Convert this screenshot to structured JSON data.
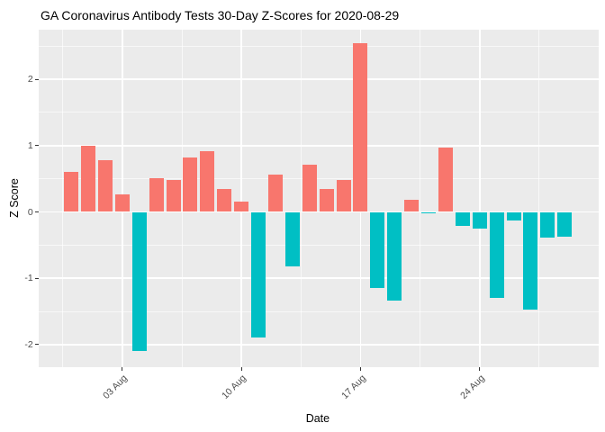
{
  "title": "GA Coronavirus Antibody Tests 30-Day Z-Scores for 2020-08-29",
  "chart_data": {
    "type": "bar",
    "title": "GA Coronavirus Antibody Tests 30-Day Z-Scores for 2020-08-29",
    "xlabel": "Date",
    "ylabel": "Z Score",
    "x": [
      "2020-07-31",
      "2020-08-01",
      "2020-08-02",
      "2020-08-03",
      "2020-08-04",
      "2020-08-05",
      "2020-08-06",
      "2020-08-07",
      "2020-08-08",
      "2020-08-09",
      "2020-08-10",
      "2020-08-11",
      "2020-08-12",
      "2020-08-13",
      "2020-08-14",
      "2020-08-15",
      "2020-08-16",
      "2020-08-17",
      "2020-08-18",
      "2020-08-19",
      "2020-08-20",
      "2020-08-21",
      "2020-08-22",
      "2020-08-23",
      "2020-08-24",
      "2020-08-25",
      "2020-08-26",
      "2020-08-27",
      "2020-08-28",
      "2020-08-29"
    ],
    "values": [
      0.61,
      1.0,
      0.78,
      0.26,
      -2.1,
      0.51,
      0.48,
      0.82,
      0.92,
      0.34,
      0.15,
      -1.89,
      0.56,
      -0.82,
      0.71,
      0.34,
      0.48,
      2.54,
      -1.14,
      -1.34,
      0.18,
      -0.02,
      0.97,
      -0.21,
      -0.25,
      -1.3,
      -0.13,
      -1.47,
      -0.38,
      -0.37
    ],
    "ylim": [
      -2.33,
      2.77
    ],
    "y_ticks": [
      2,
      1,
      0,
      -1,
      -2
    ],
    "y_minor_ticks": [
      2.5,
      1.5,
      0.5,
      -0.5,
      -1.5
    ],
    "x_tick_labels": [
      "03 Aug",
      "10 Aug",
      "17 Aug",
      "24 Aug"
    ],
    "x_tick_indices": [
      3,
      10,
      17,
      24
    ],
    "x_minor_indices": [
      -0.5,
      6.5,
      13.5,
      20.5,
      27.5
    ],
    "grid": true,
    "legend": false,
    "colors": {
      "positive": "#F8766D",
      "negative": "#00BFC4",
      "panel_bg": "#EBEBEB",
      "gridline": "#FFFFFF",
      "tick_text": "#4D4D4D",
      "tick_mark": "#333333"
    }
  }
}
